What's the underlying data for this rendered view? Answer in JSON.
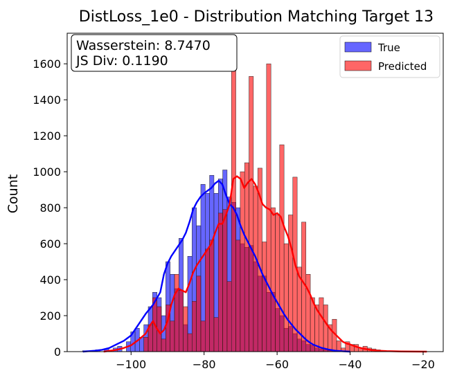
{
  "chart_data": {
    "type": "histogram",
    "title": "DistLoss_1e0 - Distribution Matching Target 13",
    "xlabel": "",
    "ylabel": "Count",
    "xlim": [
      -117.5,
      -14.5
    ],
    "ylim": [
      0,
      1770
    ],
    "xticks": [
      -100,
      -80,
      -60,
      -40,
      -20
    ],
    "yticks": [
      0,
      200,
      400,
      600,
      800,
      1000,
      1200,
      1400,
      1600
    ],
    "grid": false,
    "legend_position": "top-right",
    "annotation": {
      "line1": "Wasserstein: 8.7470",
      "line2": "JS Div: 0.1190"
    },
    "series": [
      {
        "name": "True",
        "color": "#0000ff",
        "alpha": 0.6,
        "bins": [
          [
            -114.5,
            0
          ],
          [
            -113.3,
            5
          ],
          [
            -112.1,
            0
          ],
          [
            -110.9,
            0
          ],
          [
            -109.7,
            10
          ],
          [
            -108.5,
            0
          ],
          [
            -107.3,
            15
          ],
          [
            -106.1,
            0
          ],
          [
            -104.9,
            20
          ],
          [
            -103.7,
            30
          ],
          [
            -102.5,
            0
          ],
          [
            -101.3,
            55
          ],
          [
            -100.1,
            110
          ],
          [
            -98.9,
            130
          ],
          [
            -97.7,
            80
          ],
          [
            -96.5,
            150
          ],
          [
            -95.3,
            250
          ],
          [
            -94.1,
            330
          ],
          [
            -92.9,
            300
          ],
          [
            -91.7,
            200
          ],
          [
            -90.5,
            500
          ],
          [
            -89.3,
            430
          ],
          [
            -88.1,
            350
          ],
          [
            -86.9,
            630
          ],
          [
            -85.7,
            150
          ],
          [
            -84.5,
            530
          ],
          [
            -83.3,
            800
          ],
          [
            -82.1,
            700
          ],
          [
            -80.9,
            930
          ],
          [
            -79.7,
            880
          ],
          [
            -78.5,
            980
          ],
          [
            -77.3,
            880
          ],
          [
            -76.1,
            960
          ],
          [
            -74.9,
            1010
          ],
          [
            -73.7,
            860
          ],
          [
            -72.5,
            830
          ],
          [
            -71.3,
            800
          ],
          [
            -70.1,
            600
          ],
          [
            -68.9,
            580
          ],
          [
            -67.7,
            590
          ],
          [
            -66.5,
            500
          ],
          [
            -65.3,
            420
          ],
          [
            -64.1,
            420
          ],
          [
            -62.9,
            330
          ],
          [
            -61.7,
            330
          ],
          [
            -60.5,
            240
          ],
          [
            -59.3,
            200
          ],
          [
            -58.1,
            130
          ],
          [
            -56.9,
            140
          ],
          [
            -55.7,
            100
          ],
          [
            -54.5,
            70
          ],
          [
            -53.3,
            60
          ],
          [
            -52.1,
            40
          ],
          [
            -50.9,
            35
          ],
          [
            -49.7,
            20
          ],
          [
            -48.5,
            15
          ],
          [
            -47.3,
            10
          ],
          [
            -46.1,
            5
          ],
          [
            -44.9,
            5
          ]
        ],
        "kde": [
          [
            -113.2,
            0
          ],
          [
            -110,
            5
          ],
          [
            -108,
            10
          ],
          [
            -106,
            20
          ],
          [
            -104,
            40
          ],
          [
            -102,
            60
          ],
          [
            -100,
            90
          ],
          [
            -98,
            150
          ],
          [
            -96,
            210
          ],
          [
            -94,
            260
          ],
          [
            -92,
            330
          ],
          [
            -91,
            430
          ],
          [
            -90,
            490
          ],
          [
            -89,
            530
          ],
          [
            -88,
            560
          ],
          [
            -87,
            590
          ],
          [
            -86,
            620
          ],
          [
            -85,
            660
          ],
          [
            -84,
            720
          ],
          [
            -83,
            790
          ],
          [
            -82,
            830
          ],
          [
            -81,
            860
          ],
          [
            -80,
            880
          ],
          [
            -79,
            895
          ],
          [
            -78,
            910
          ],
          [
            -77,
            935
          ],
          [
            -76,
            950
          ],
          [
            -75,
            930
          ],
          [
            -74,
            870
          ],
          [
            -73,
            820
          ],
          [
            -72,
            800
          ],
          [
            -71,
            760
          ],
          [
            -70,
            700
          ],
          [
            -69,
            650
          ],
          [
            -68,
            610
          ],
          [
            -67,
            570
          ],
          [
            -66,
            530
          ],
          [
            -65,
            480
          ],
          [
            -64,
            430
          ],
          [
            -63,
            390
          ],
          [
            -62,
            350
          ],
          [
            -61,
            310
          ],
          [
            -60,
            275
          ],
          [
            -59,
            240
          ],
          [
            -58,
            205
          ],
          [
            -57,
            175
          ],
          [
            -56,
            150
          ],
          [
            -55,
            125
          ],
          [
            -54,
            105
          ],
          [
            -53,
            85
          ],
          [
            -52,
            65
          ],
          [
            -51,
            50
          ],
          [
            -50,
            38
          ],
          [
            -48,
            22
          ],
          [
            -46,
            12
          ],
          [
            -44,
            5
          ],
          [
            -42,
            2
          ],
          [
            -40,
            0
          ]
        ]
      },
      {
        "name": "Predicted",
        "color": "#ff0000",
        "alpha": 0.6,
        "bins": [
          [
            -96.5,
            80
          ],
          [
            -95.3,
            150
          ],
          [
            -94.1,
            300
          ],
          [
            -92.9,
            250
          ],
          [
            -91.7,
            70
          ],
          [
            -90.5,
            260
          ],
          [
            -89.3,
            170
          ],
          [
            -88.1,
            430
          ],
          [
            -86.9,
            340
          ],
          [
            -85.7,
            250
          ],
          [
            -84.5,
            100
          ],
          [
            -83.3,
            280
          ],
          [
            -82.1,
            420
          ],
          [
            -80.9,
            170
          ],
          [
            -79.7,
            570
          ],
          [
            -78.5,
            620
          ],
          [
            -77.3,
            190
          ],
          [
            -76.1,
            770
          ],
          [
            -74.9,
            790
          ],
          [
            -73.7,
            390
          ],
          [
            -72.5,
            1690
          ],
          [
            -71.3,
            620
          ],
          [
            -70.1,
            1000
          ],
          [
            -68.9,
            1050
          ],
          [
            -67.7,
            1530
          ],
          [
            -66.5,
            920
          ],
          [
            -65.3,
            1020
          ],
          [
            -64.1,
            610
          ],
          [
            -62.9,
            1600
          ],
          [
            -61.7,
            800
          ],
          [
            -60.5,
            760
          ],
          [
            -59.3,
            1150
          ],
          [
            -58.1,
            600
          ],
          [
            -56.9,
            760
          ],
          [
            -55.7,
            970
          ],
          [
            -54.5,
            470
          ],
          [
            -53.3,
            720
          ],
          [
            -52.1,
            430
          ],
          [
            -50.9,
            300
          ],
          [
            -49.7,
            260
          ],
          [
            -48.5,
            300
          ],
          [
            -47.3,
            260
          ],
          [
            -46.1,
            150
          ],
          [
            -44.9,
            180
          ],
          [
            -43.7,
            60
          ],
          [
            -42.5,
            20
          ],
          [
            -41.3,
            55
          ],
          [
            -40.1,
            40
          ],
          [
            -38.9,
            40
          ],
          [
            -37.7,
            20
          ],
          [
            -36.5,
            30
          ],
          [
            -35.3,
            20
          ],
          [
            -34.1,
            15
          ],
          [
            -32.9,
            10
          ],
          [
            -31.7,
            5
          ]
        ],
        "kde": [
          [
            -107.5,
            0
          ],
          [
            -104,
            10
          ],
          [
            -102,
            20
          ],
          [
            -100,
            35
          ],
          [
            -98,
            65
          ],
          [
            -96,
            100
          ],
          [
            -95,
            140
          ],
          [
            -94,
            170
          ],
          [
            -93,
            130
          ],
          [
            -92,
            100
          ],
          [
            -91,
            120
          ],
          [
            -90,
            170
          ],
          [
            -89,
            260
          ],
          [
            -88,
            320
          ],
          [
            -87,
            350
          ],
          [
            -86,
            340
          ],
          [
            -85,
            330
          ],
          [
            -84,
            380
          ],
          [
            -83,
            440
          ],
          [
            -82,
            480
          ],
          [
            -81,
            510
          ],
          [
            -80,
            540
          ],
          [
            -79,
            570
          ],
          [
            -78,
            600
          ],
          [
            -77,
            660
          ],
          [
            -76,
            710
          ],
          [
            -75,
            710
          ],
          [
            -74,
            760
          ],
          [
            -73,
            820
          ],
          [
            -72,
            960
          ],
          [
            -71,
            975
          ],
          [
            -70,
            960
          ],
          [
            -69,
            910
          ],
          [
            -68,
            940
          ],
          [
            -67,
            960
          ],
          [
            -66,
            930
          ],
          [
            -65,
            880
          ],
          [
            -64,
            820
          ],
          [
            -63,
            800
          ],
          [
            -62,
            790
          ],
          [
            -61,
            760
          ],
          [
            -60,
            770
          ],
          [
            -59,
            750
          ],
          [
            -58,
            690
          ],
          [
            -57,
            640
          ],
          [
            -56,
            570
          ],
          [
            -55,
            480
          ],
          [
            -54,
            420
          ],
          [
            -53,
            390
          ],
          [
            -52,
            360
          ],
          [
            -51,
            320
          ],
          [
            -50,
            270
          ],
          [
            -49,
            230
          ],
          [
            -48,
            200
          ],
          [
            -47,
            170
          ],
          [
            -46,
            140
          ],
          [
            -45,
            115
          ],
          [
            -44,
            95
          ],
          [
            -43,
            75
          ],
          [
            -42,
            55
          ],
          [
            -41,
            45
          ],
          [
            -40,
            40
          ],
          [
            -39,
            32
          ],
          [
            -38,
            25
          ],
          [
            -36,
            15
          ],
          [
            -34,
            8
          ],
          [
            -32,
            5
          ],
          [
            -30,
            3
          ],
          [
            -26,
            1
          ],
          [
            -19,
            0
          ]
        ]
      }
    ]
  }
}
